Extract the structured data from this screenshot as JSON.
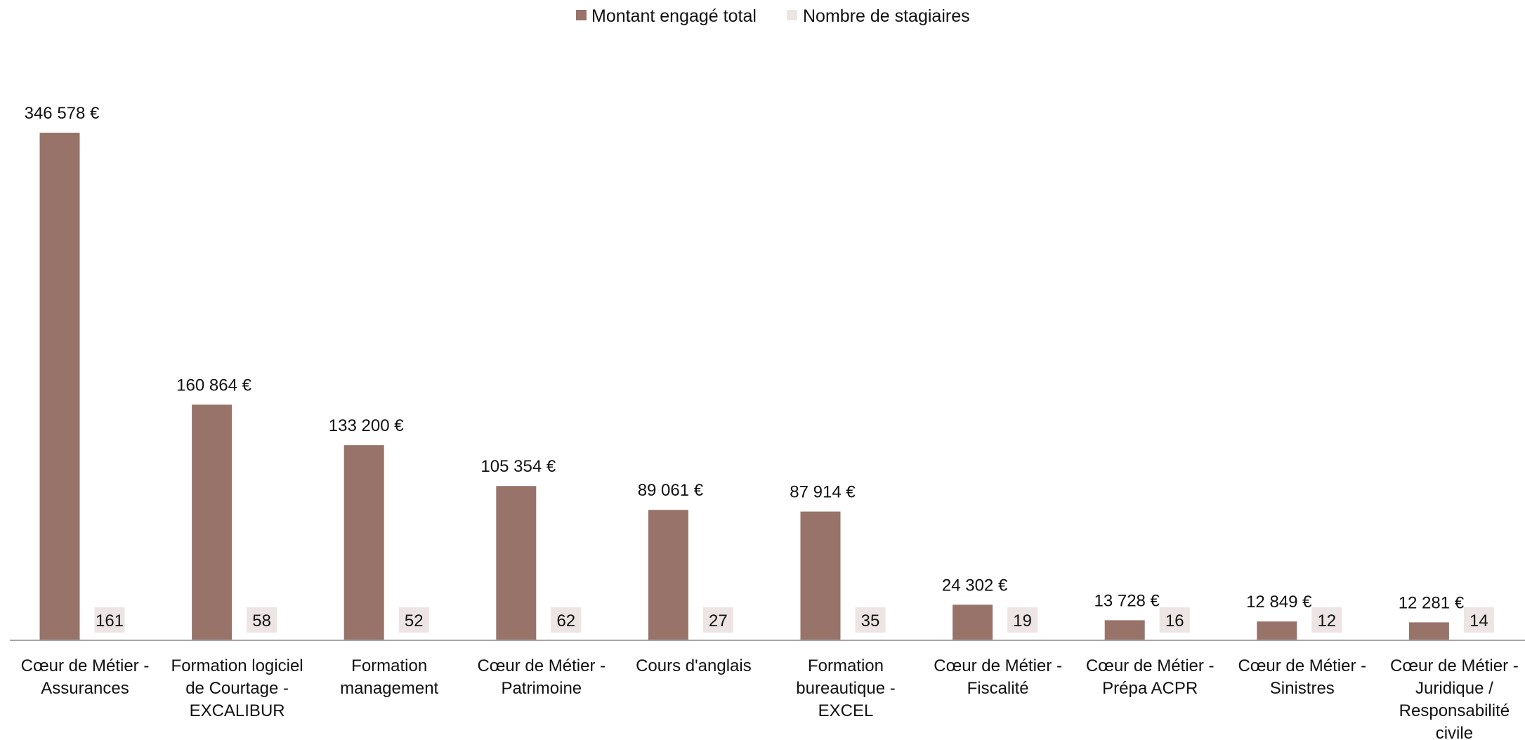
{
  "chart_data": {
    "type": "bar",
    "title": "",
    "xlabel": "",
    "ylabel": "",
    "legend_position": "top-center",
    "grid": false,
    "categories": [
      [
        "Cœur de Métier -",
        "Assurances"
      ],
      [
        "Formation logiciel",
        "de Courtage -",
        "EXCALIBUR"
      ],
      [
        "Formation",
        "management"
      ],
      [
        "Cœur de Métier -",
        "Patrimoine"
      ],
      [
        "Cours d'anglais"
      ],
      [
        "Formation",
        "bureautique -",
        "EXCEL"
      ],
      [
        "Cœur de Métier -",
        "Fiscalité"
      ],
      [
        "Cœur de Métier -",
        "Prépa ACPR"
      ],
      [
        "Cœur de Métier -",
        "Sinistres"
      ],
      [
        "Cœur de Métier -",
        "Juridique /",
        "Responsabilité",
        "civile"
      ]
    ],
    "series": [
      {
        "name": "Montant engagé total",
        "color": "#98736a",
        "values": [
          346578,
          160864,
          133200,
          105354,
          89061,
          87914,
          24302,
          13728,
          12849,
          12281
        ],
        "labels": [
          "346 578 €",
          "160 864 €",
          "133 200 €",
          "105 354 €",
          "89 061 €",
          "87 914 €",
          "24 302 €",
          "13 728 €",
          "12 849 €",
          "12 281 €"
        ]
      },
      {
        "name": "Nombre de stagiaires",
        "color": "#ede5e3",
        "values": [
          161,
          58,
          52,
          62,
          27,
          35,
          19,
          16,
          12,
          14
        ],
        "labels": [
          "161",
          "58",
          "52",
          "62",
          "27",
          "35",
          "19",
          "16",
          "12",
          "14"
        ]
      }
    ],
    "axis_color": "#a6a6a6"
  }
}
